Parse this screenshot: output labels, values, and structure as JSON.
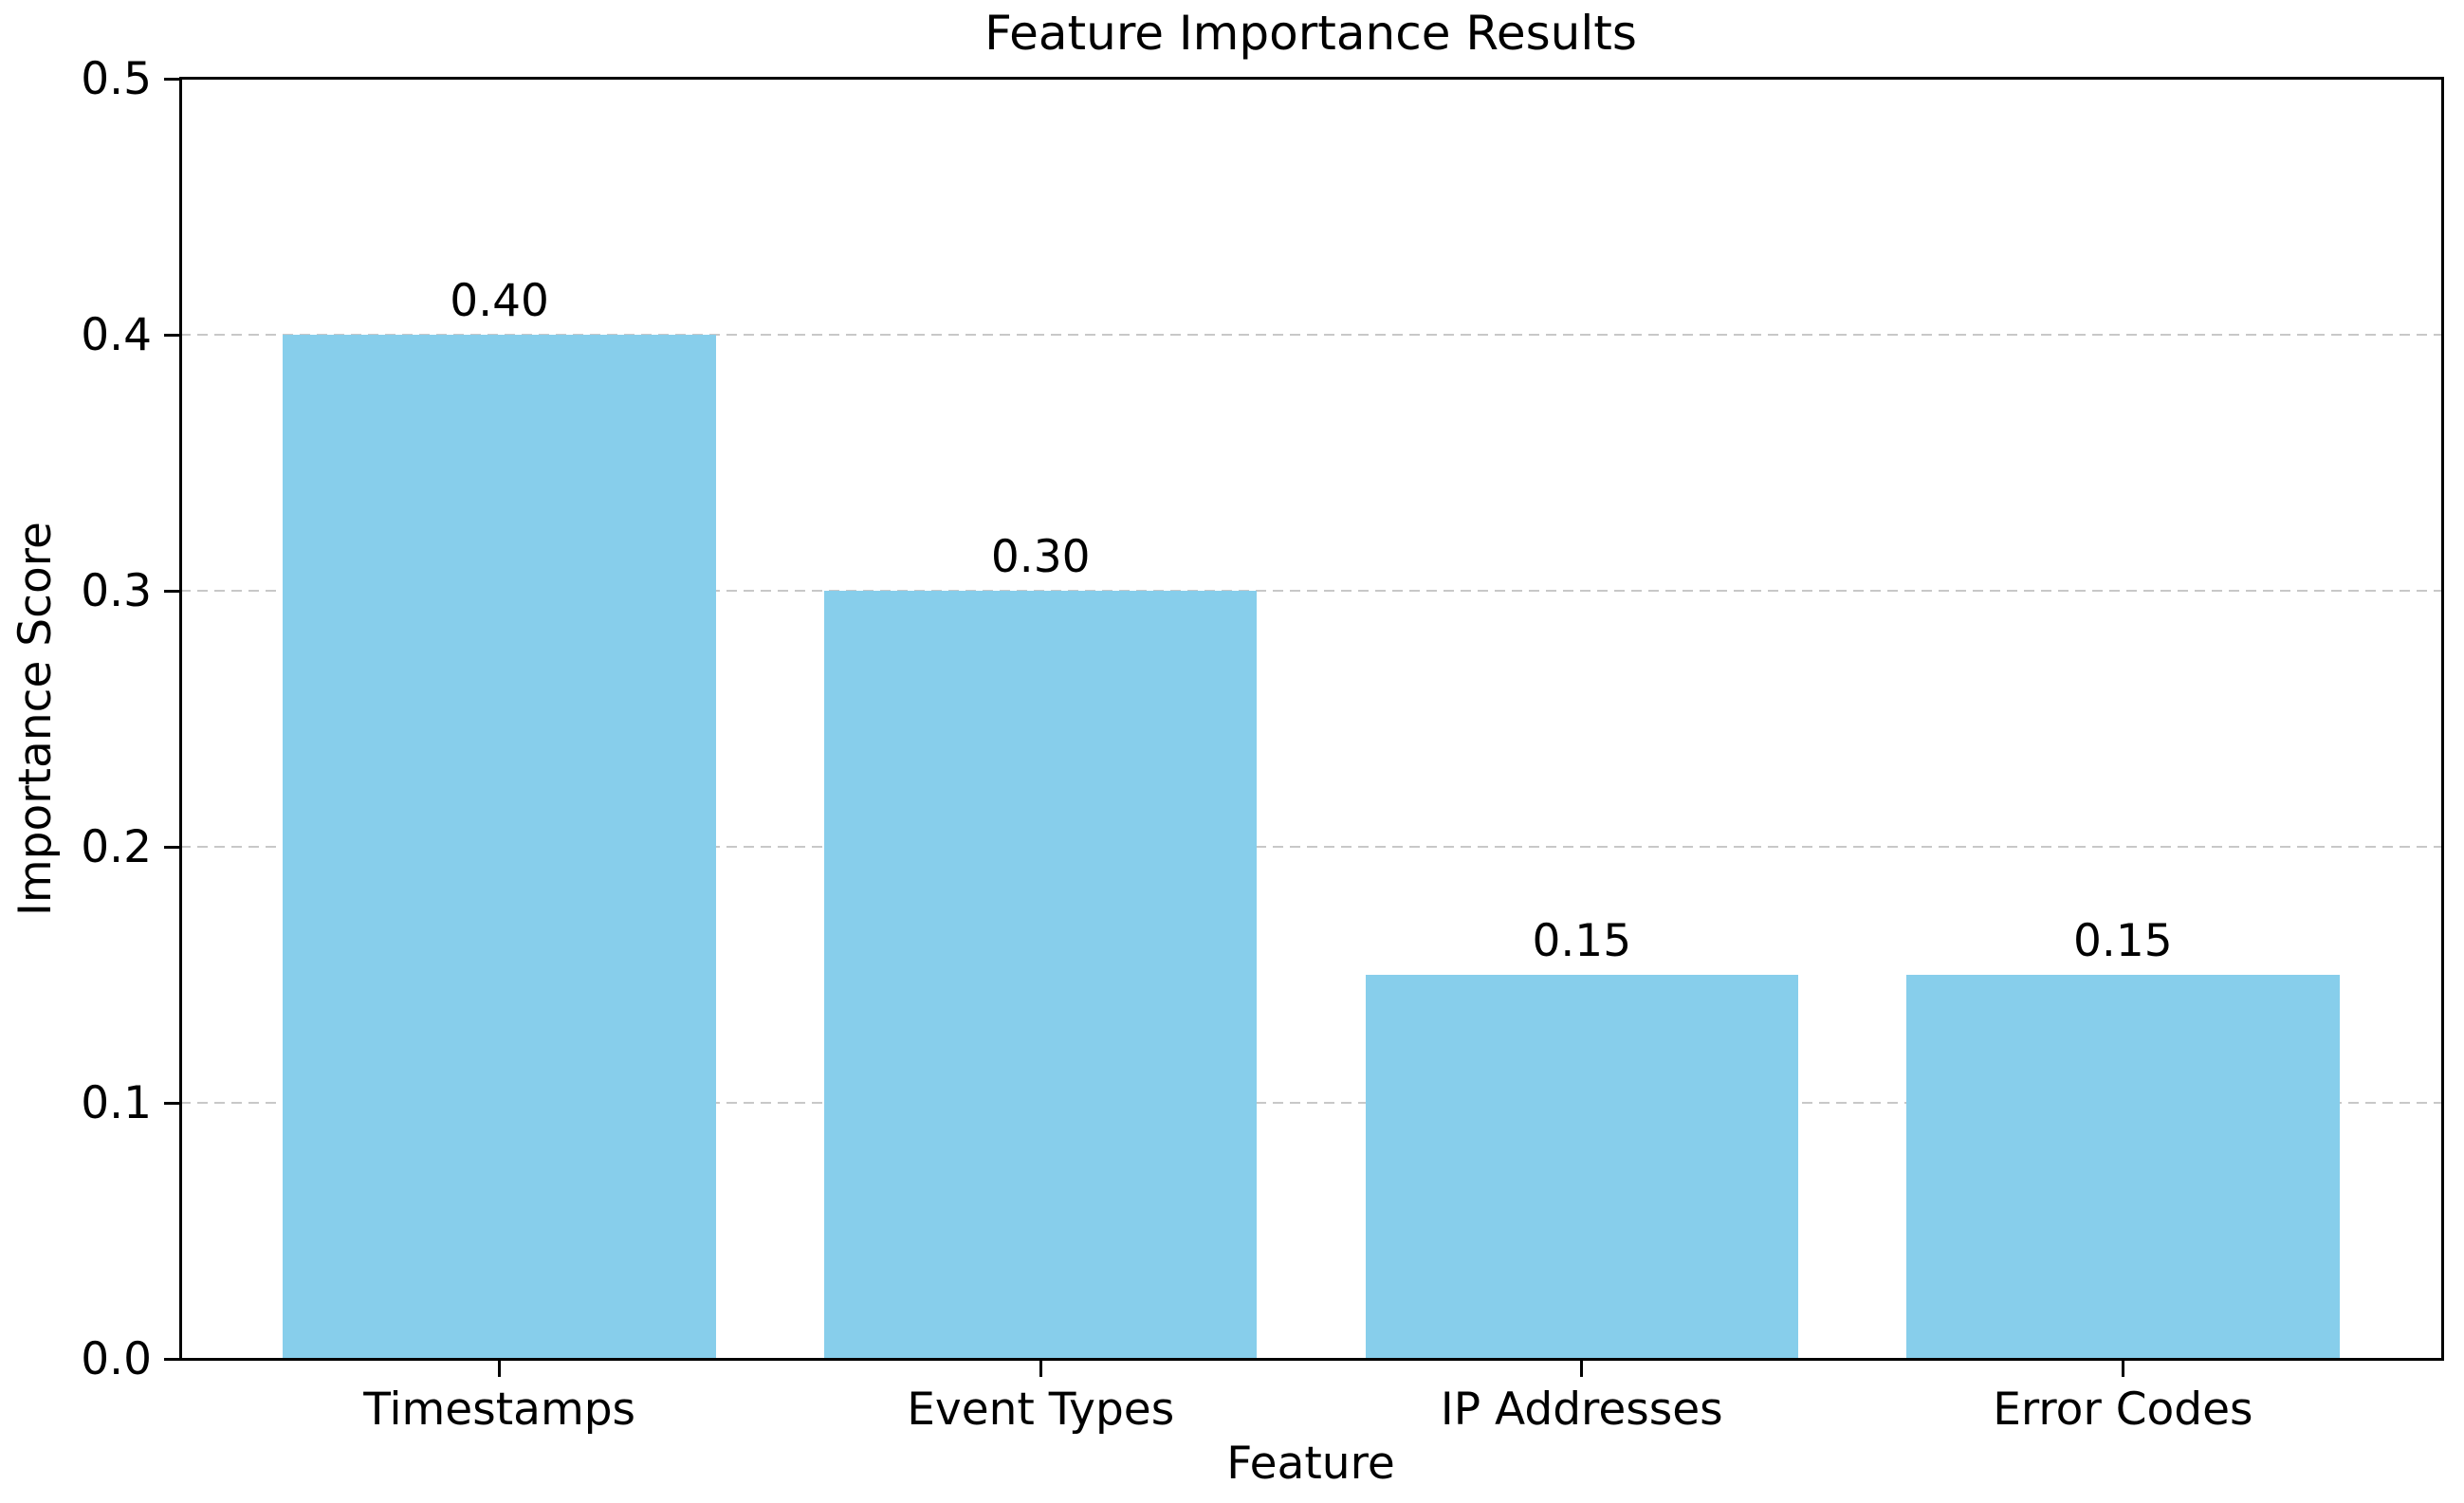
{
  "chart_data": {
    "type": "bar",
    "title": "Feature Importance Results",
    "xlabel": "Feature",
    "ylabel": "Importance Score",
    "categories": [
      "Timestamps",
      "Event Types",
      "IP Addresses",
      "Error Codes"
    ],
    "values": [
      0.4,
      0.3,
      0.15,
      0.15
    ],
    "bar_value_labels": [
      "0.40",
      "0.30",
      "0.15",
      "0.15"
    ],
    "ylim": [
      0.0,
      0.5
    ],
    "ytick_values": [
      0.0,
      0.1,
      0.2,
      0.3,
      0.4,
      0.5
    ],
    "ytick_labels": [
      "0.0",
      "0.1",
      "0.2",
      "0.3",
      "0.4",
      "0.5"
    ],
    "grid": "horizontal-dashed",
    "legend": "none",
    "bar_color": "#87CEEB",
    "grid_color": "#c8c8c8",
    "axis_color": "#000000",
    "text_color": "#000000",
    "background_color": "#ffffff"
  }
}
